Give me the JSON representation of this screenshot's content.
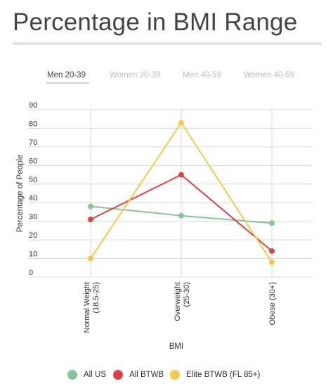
{
  "title": "Percentage in BMI Range",
  "tabs": [
    {
      "label": "Men 20-39",
      "active": true
    },
    {
      "label": "Women 20-39",
      "active": false
    },
    {
      "label": "Men 40-59",
      "active": false
    },
    {
      "label": "Women 40-59",
      "active": false
    }
  ],
  "chart_data": {
    "type": "line",
    "categories": [
      "Normal Weight (18.5-25)",
      "Overweight (25-30)",
      "Obese (30+)"
    ],
    "category_tick_lines": [
      [
        "Normal Weight",
        "(18.5-25)"
      ],
      [
        "Overweight",
        "(25-30)"
      ],
      [
        "Obese (30+)"
      ]
    ],
    "series": [
      {
        "name": "All US",
        "color": "#86c49a",
        "values": [
          38,
          33,
          29
        ]
      },
      {
        "name": "All BTWB",
        "color": "#d64545",
        "values": [
          31,
          55,
          14
        ]
      },
      {
        "name": "Elite BTWB (FL 85+)",
        "color": "#f2c94c",
        "values": [
          10,
          83,
          8
        ]
      }
    ],
    "ylim": [
      0,
      90
    ],
    "yticks": [
      0,
      10,
      20,
      30,
      40,
      50,
      60,
      70,
      80,
      90
    ],
    "xlabel": "BMI",
    "ylabel": "Percentage of People",
    "grid": true,
    "legend_position": "bottom"
  }
}
